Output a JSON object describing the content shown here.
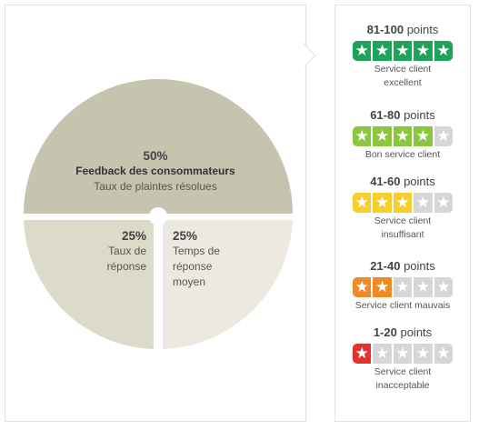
{
  "diagram": {
    "top": {
      "percent": "50%",
      "title": "Feedback des consommateurs",
      "subtitle": "Taux de plaintes résolues"
    },
    "bottom_left": {
      "percent": "25%",
      "label_line1": "Taux de",
      "label_line2": "réponse"
    },
    "bottom_right": {
      "percent": "25%",
      "label_line1": "Temps de",
      "label_line2": "réponse",
      "label_line3": "moyen"
    },
    "colors": {
      "top": "#c6c4ae",
      "bottom_left": "#dcdac9",
      "bottom_right": "#eceae0"
    }
  },
  "tiers": [
    {
      "range": "81-100",
      "unit": "points",
      "filled": 5,
      "color": "#1fa35b",
      "label_line1": "Service client",
      "label_line2": "excellent"
    },
    {
      "range": "61-80",
      "unit": "points",
      "filled": 4,
      "color": "#8cc63f",
      "label_line1": "Bon service client",
      "label_line2": ""
    },
    {
      "range": "41-60",
      "unit": "points",
      "filled": 3,
      "color": "#f7cf2c",
      "label_line1": "Service client",
      "label_line2": "insuffisant"
    },
    {
      "range": "21-40",
      "unit": "points",
      "filled": 2,
      "color": "#f08a24",
      "label_line1": "Service client mauvais",
      "label_line2": ""
    },
    {
      "range": "1-20",
      "unit": "points",
      "filled": 1,
      "color": "#e2322b",
      "label_line1": "Service client",
      "label_line2": "inacceptable"
    }
  ],
  "star_icon": "star-icon",
  "empty_star_color": "#d6d6d6"
}
